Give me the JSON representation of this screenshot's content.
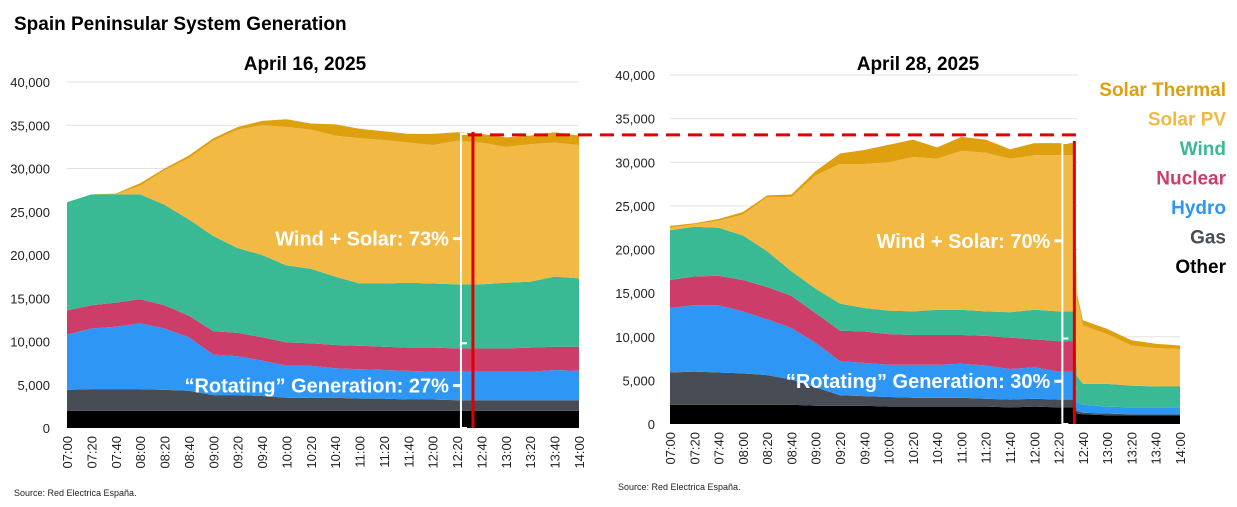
{
  "title": "Spain Peninsular System Generation",
  "source": "Source: Red Electrica España.",
  "colors": {
    "Solar Thermal": "#dfa010",
    "Solar PV": "#f2b944",
    "Wind": "#3aba94",
    "Nuclear": "#cc3d6a",
    "Hydro": "#2e96f5",
    "Gas": "#474c55",
    "Other": "#000000",
    "marker": "#e00000"
  },
  "legend": [
    "Solar Thermal",
    "Solar PV",
    "Wind",
    "Nuclear",
    "Hydro",
    "Gas",
    "Other"
  ],
  "chart_data": [
    {
      "type": "area",
      "stacked": true,
      "title": "April 16, 2025",
      "ylim": [
        0,
        40000
      ],
      "yticks": [
        "0",
        "5,000",
        "10,000",
        "15,000",
        "20,000",
        "25,000",
        "30,000",
        "35,000",
        "40,000"
      ],
      "xticks": [
        "07:00",
        "07:20",
        "07:40",
        "08:00",
        "08:20",
        "08:40",
        "09:00",
        "09:20",
        "09:40",
        "10:00",
        "10:20",
        "10:40",
        "11:00",
        "11:20",
        "11:40",
        "12:00",
        "12:20",
        "12:40",
        "13:00",
        "13:20",
        "13:40",
        "14:00"
      ],
      "grid": true,
      "x": [
        "07:00",
        "07:20",
        "07:40",
        "08:00",
        "08:20",
        "08:40",
        "09:00",
        "09:20",
        "09:40",
        "10:00",
        "10:20",
        "10:40",
        "11:00",
        "11:20",
        "11:40",
        "12:00",
        "12:20",
        "12:40",
        "13:00",
        "13:20",
        "13:40",
        "14:00"
      ],
      "series": [
        {
          "name": "Other",
          "values": [
            2000,
            2000,
            2000,
            2000,
            2000,
            2000,
            2000,
            2000,
            2000,
            2000,
            2000,
            2000,
            2000,
            2000,
            2000,
            2000,
            2000,
            2000,
            2000,
            2000,
            2000,
            2000
          ]
        },
        {
          "name": "Gas",
          "values": [
            2400,
            2500,
            2500,
            2500,
            2400,
            2300,
            1800,
            1800,
            1700,
            1500,
            1500,
            1500,
            1400,
            1400,
            1300,
            1300,
            1200,
            1200,
            1200,
            1200,
            1200,
            1200
          ]
        },
        {
          "name": "Hydro",
          "values": [
            6400,
            7000,
            7200,
            7600,
            7100,
            6200,
            4700,
            4500,
            4100,
            3700,
            3700,
            3400,
            3400,
            3300,
            3300,
            3200,
            3300,
            3300,
            3300,
            3300,
            3500,
            3400
          ]
        },
        {
          "name": "Nuclear",
          "values": [
            2800,
            2700,
            2800,
            2800,
            2700,
            2500,
            2700,
            2700,
            2700,
            2700,
            2600,
            2700,
            2700,
            2700,
            2700,
            2800,
            2700,
            2700,
            2700,
            2800,
            2700,
            2800
          ]
        },
        {
          "name": "Wind",
          "values": [
            12500,
            12800,
            12500,
            12100,
            11600,
            11100,
            11000,
            9800,
            9500,
            8900,
            8600,
            7900,
            7200,
            7300,
            7500,
            7400,
            7400,
            7400,
            7600,
            7600,
            8100,
            7900
          ]
        },
        {
          "name": "Solar PV",
          "values": [
            0,
            0,
            0,
            1000,
            4000,
            7100,
            11000,
            13700,
            15000,
            16000,
            16100,
            16300,
            16800,
            16600,
            16200,
            16000,
            16600,
            16400,
            15700,
            15900,
            15500,
            15400
          ]
        },
        {
          "name": "Solar Thermal",
          "values": [
            0,
            0,
            100,
            300,
            200,
            300,
            300,
            300,
            500,
            900,
            700,
            1300,
            1100,
            1000,
            1000,
            1300,
            1000,
            1000,
            1100,
            1000,
            1200,
            1100
          ]
        }
      ],
      "annotations": {
        "upper": "Wind + Solar: 73%",
        "lower": "“Rotating” Generation: 27%"
      },
      "event_time": "12:33",
      "reference_level": 34000
    },
    {
      "type": "area",
      "stacked": true,
      "title": "April 28, 2025",
      "ylim": [
        0,
        40000
      ],
      "yticks": [
        "0",
        "5,000",
        "10,000",
        "15,000",
        "20,000",
        "25,000",
        "30,000",
        "35,000",
        "40,000"
      ],
      "xticks": [
        "07:00",
        "07:20",
        "07:40",
        "08:00",
        "08:20",
        "08:40",
        "09:00",
        "09:20",
        "09:40",
        "10:00",
        "10:20",
        "10:40",
        "11:00",
        "11:20",
        "11:40",
        "12:00",
        "12:20",
        "12:40",
        "13:00",
        "13:20",
        "13:40",
        "14:00"
      ],
      "grid": true,
      "x": [
        "07:00",
        "07:20",
        "07:40",
        "08:00",
        "08:20",
        "08:40",
        "09:00",
        "09:20",
        "09:40",
        "10:00",
        "10:20",
        "10:40",
        "11:00",
        "11:20",
        "11:40",
        "12:00",
        "12:20",
        "12:33",
        "12:35",
        "12:40",
        "13:00",
        "13:20",
        "13:40",
        "14:00"
      ],
      "series": [
        {
          "name": "Other",
          "values": [
            2200,
            2200,
            2200,
            2200,
            2200,
            2200,
            2100,
            2100,
            2100,
            2000,
            2000,
            2000,
            2000,
            2000,
            1900,
            2000,
            1900,
            1900,
            1200,
            1100,
            1000,
            1000,
            1000,
            1000
          ]
        },
        {
          "name": "Gas",
          "values": [
            3700,
            3800,
            3700,
            3600,
            3400,
            2900,
            2100,
            1200,
            1100,
            1100,
            1000,
            1000,
            1000,
            900,
            900,
            900,
            900,
            900,
            300,
            200,
            200,
            100,
            100,
            100
          ]
        },
        {
          "name": "Hydro",
          "values": [
            7400,
            7600,
            7700,
            7100,
            6400,
            5900,
            5100,
            3900,
            3800,
            3700,
            3800,
            3800,
            3900,
            3800,
            3500,
            3600,
            3200,
            3200,
            1000,
            900,
            800,
            800,
            800,
            800
          ]
        },
        {
          "name": "Nuclear",
          "values": [
            3200,
            3300,
            3400,
            3600,
            3700,
            3700,
            3400,
            3500,
            3600,
            3500,
            3400,
            3400,
            3300,
            3400,
            3600,
            3200,
            3500,
            3500,
            0,
            0,
            0,
            0,
            0,
            0
          ]
        },
        {
          "name": "Wind",
          "values": [
            5700,
            5700,
            5500,
            5100,
            4100,
            2800,
            2800,
            3100,
            2700,
            2700,
            2700,
            2900,
            2900,
            2800,
            2900,
            3400,
            3400,
            3400,
            3000,
            2400,
            2600,
            2500,
            2400,
            2400
          ]
        },
        {
          "name": "Solar PV",
          "values": [
            300,
            300,
            800,
            2400,
            6200,
            8500,
            13000,
            16000,
            16500,
            17000,
            17700,
            17300,
            18200,
            18200,
            17600,
            17700,
            17900,
            17900,
            9000,
            6700,
            5700,
            4600,
            4400,
            4300
          ]
        },
        {
          "name": "Solar Thermal",
          "values": [
            200,
            100,
            200,
            300,
            200,
            300,
            500,
            1200,
            1600,
            2000,
            2000,
            1300,
            1600,
            1500,
            1100,
            1400,
            1400,
            1400,
            500,
            600,
            600,
            600,
            500,
            400
          ]
        }
      ],
      "annotations": {
        "upper": "Wind + Solar: 70%",
        "lower": "“Rotating” Generation: 30%"
      },
      "event_time": "12:33",
      "reference_level": 34000
    }
  ]
}
